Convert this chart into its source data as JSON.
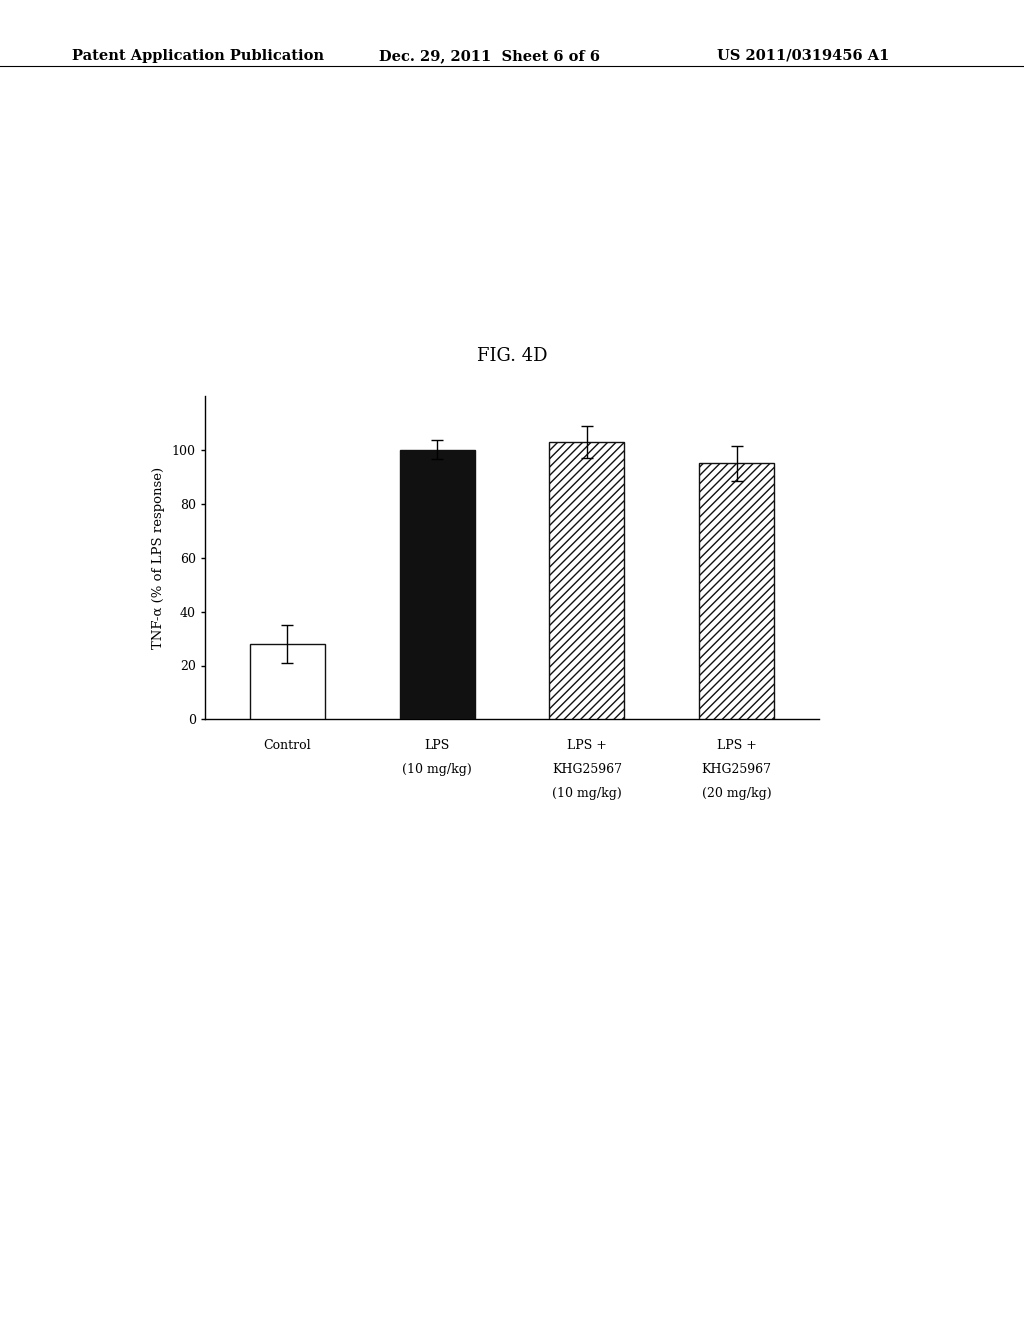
{
  "title": "FIG. 4D",
  "ylabel": "TNF-α (% of LPS response)",
  "values": [
    28.0,
    100.0,
    103.0,
    95.0
  ],
  "errors": [
    7.0,
    3.5,
    6.0,
    6.5
  ],
  "ylim": [
    0,
    120
  ],
  "yticks": [
    0,
    20,
    40,
    60,
    80,
    100
  ],
  "bar_facecolors": [
    "#ffffff",
    "#111111",
    "#ffffff",
    "#ffffff"
  ],
  "bar_edgecolors": [
    "#111111",
    "#111111",
    "#111111",
    "#111111"
  ],
  "hatch_patterns": [
    "",
    "",
    "////",
    "////"
  ],
  "background_color": "#ffffff",
  "header_left": "Patent Application Publication",
  "header_center": "Dec. 29, 2011  Sheet 6 of 6",
  "header_right": "US 2011/0319456 A1",
  "header_fontsize": 10.5,
  "title_fontsize": 13,
  "axis_fontsize": 9,
  "tick_fontsize": 9,
  "xlabel_lines": [
    [
      "Control"
    ],
    [
      "LPS",
      "(10 mg/kg)"
    ],
    [
      "LPS +",
      "KHG25967",
      "(10 mg/kg)"
    ],
    [
      "LPS +",
      "KHG25967",
      "(20 mg/kg)"
    ]
  ]
}
